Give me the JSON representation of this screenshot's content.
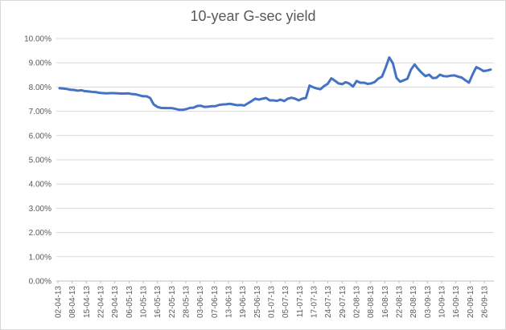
{
  "chart_data": {
    "type": "line",
    "title": "10-year G-sec yield",
    "xlabel": "",
    "ylabel": "",
    "ylim": [
      0,
      0.1
    ],
    "y_tick_labels": [
      "0.00%",
      "1.00%",
      "2.00%",
      "3.00%",
      "4.00%",
      "5.00%",
      "6.00%",
      "7.00%",
      "8.00%",
      "9.00%",
      "10.00%"
    ],
    "x_tick_labels": [
      "02-04-13",
      "08-04-13",
      "15-04-13",
      "22-04-13",
      "29-04-13",
      "06-05-13",
      "10-05-13",
      "16-05-13",
      "22-05-13",
      "28-05-13",
      "03-06-13",
      "07-06-13",
      "13-06-13",
      "19-06-13",
      "25-06-13",
      "01-07-13",
      "05-07-13",
      "11-07-13",
      "17-07-13",
      "24-07-13",
      "29-07-13",
      "02-08-13",
      "08-08-13",
      "16-08-13",
      "22-08-13",
      "28-08-13",
      "03-09-13",
      "10-09-13",
      "16-09-13",
      "20-09-13",
      "26-09-13"
    ],
    "grid": true,
    "legend": "none",
    "colors": {
      "series": "#4472c4",
      "grid": "#d9d9d9",
      "axis": "#bfbfbf",
      "text": "#595959"
    },
    "series": [
      {
        "values": [
          0.0795,
          0.0794,
          0.0792,
          0.0789,
          0.0788,
          0.0785,
          0.0787,
          0.0783,
          0.0782,
          0.078,
          0.0779,
          0.0776,
          0.0775,
          0.0774,
          0.0775,
          0.0775,
          0.0774,
          0.0773,
          0.0773,
          0.0774,
          0.0771,
          0.077,
          0.0766,
          0.0762,
          0.0762,
          0.0755,
          0.0728,
          0.0718,
          0.0714,
          0.0713,
          0.0713,
          0.0713,
          0.071,
          0.0706,
          0.0706,
          0.0709,
          0.0714,
          0.0715,
          0.0722,
          0.0723,
          0.0718,
          0.0719,
          0.0721,
          0.0721,
          0.0726,
          0.0728,
          0.0729,
          0.0731,
          0.0728,
          0.0725,
          0.0726,
          0.0724,
          0.0733,
          0.0742,
          0.0752,
          0.0748,
          0.0752,
          0.0755,
          0.0745,
          0.0745,
          0.0743,
          0.0748,
          0.0742,
          0.0752,
          0.0756,
          0.0752,
          0.0745,
          0.0752,
          0.0755,
          0.0806,
          0.0799,
          0.0794,
          0.0791,
          0.0804,
          0.0813,
          0.0836,
          0.0826,
          0.0815,
          0.0812,
          0.082,
          0.0814,
          0.0802,
          0.0825,
          0.0818,
          0.0818,
          0.0813,
          0.0815,
          0.0821,
          0.0835,
          0.0843,
          0.088,
          0.0922,
          0.0898,
          0.0838,
          0.0822,
          0.0828,
          0.0834,
          0.0872,
          0.0893,
          0.0874,
          0.0858,
          0.0845,
          0.0851,
          0.0837,
          0.0838,
          0.0851,
          0.0845,
          0.0844,
          0.0847,
          0.0848,
          0.0843,
          0.0839,
          0.0828,
          0.0818,
          0.0852,
          0.0882,
          0.0875,
          0.0866,
          0.0868,
          0.0872
        ]
      }
    ]
  }
}
